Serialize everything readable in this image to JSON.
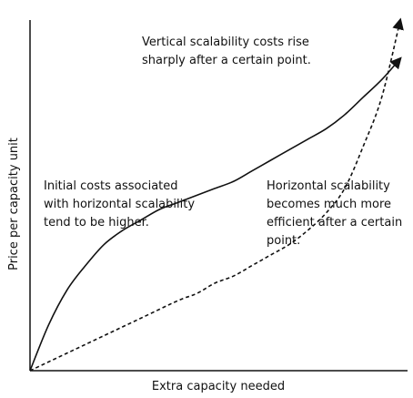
{
  "chart_data": {
    "type": "line",
    "title": "",
    "xlabel": "Extra capacity needed",
    "ylabel": "Price per capacity unit",
    "grid": false,
    "legend": "none",
    "axis_ticks": false,
    "series": [
      {
        "style": "dashed",
        "color": "#111111",
        "arrow_end": true,
        "x": [
          0,
          10,
          20,
          30,
          40,
          45,
          50,
          55,
          60,
          65,
          70,
          75,
          80,
          85,
          90,
          95,
          100
        ],
        "y": [
          0,
          5,
          10,
          15,
          20,
          22,
          25,
          27,
          30,
          33,
          36,
          40,
          45,
          52,
          64,
          78,
          100
        ]
      },
      {
        "style": "solid",
        "color": "#111111",
        "arrow_end": true,
        "x": [
          0,
          5,
          10,
          15,
          20,
          25,
          30,
          35,
          40,
          45,
          50,
          55,
          60,
          65,
          70,
          75,
          80,
          85,
          90,
          95,
          100
        ],
        "y": [
          0,
          13,
          23,
          30,
          36,
          40,
          43,
          46,
          48,
          50,
          52,
          54,
          57,
          60,
          63,
          66,
          69,
          73,
          78,
          83,
          89
        ]
      }
    ],
    "annotations": [
      {
        "lines": [
          "Vertical scalability costs rise",
          "sharply after a certain point."
        ]
      },
      {
        "lines": [
          "Initial costs associated",
          "with horizontal scalability",
          "tend to be higher."
        ]
      },
      {
        "lines": [
          "Horizontal scalability",
          "becomes much more",
          "efficient after a certain",
          "point."
        ]
      }
    ]
  }
}
